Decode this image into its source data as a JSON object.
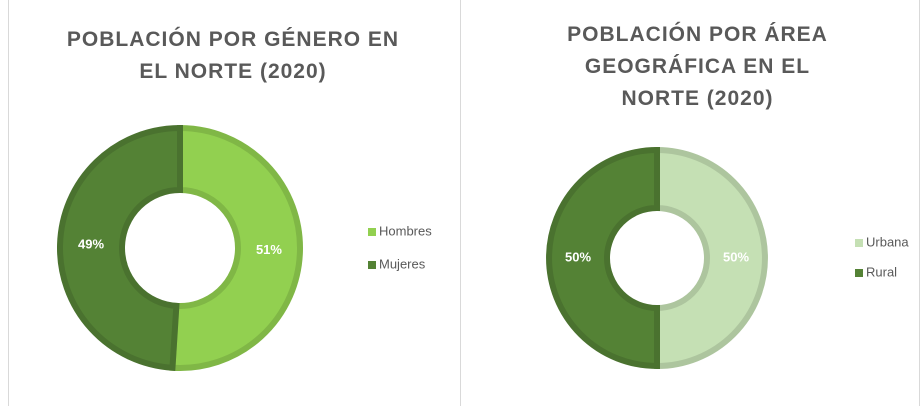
{
  "chart_data": [
    {
      "type": "donut",
      "title": "POBLACIÓN POR GÉNERO EN EL NORTE (2020)",
      "categories": [
        "Hombres",
        "Mujeres"
      ],
      "values": [
        51,
        49
      ],
      "value_labels": [
        "51%",
        "49%"
      ],
      "colors": [
        "#92d050",
        "#548235"
      ],
      "legend": "right"
    },
    {
      "type": "donut",
      "title": "POBLACIÓN POR ÁREA GEOGRÁFICA EN EL NORTE (2020)",
      "categories": [
        "Urbana",
        "Rural"
      ],
      "values": [
        50,
        50
      ],
      "value_labels": [
        "50%",
        "50%"
      ],
      "colors": [
        "#c5e0b4",
        "#548235"
      ],
      "legend": "right"
    }
  ]
}
